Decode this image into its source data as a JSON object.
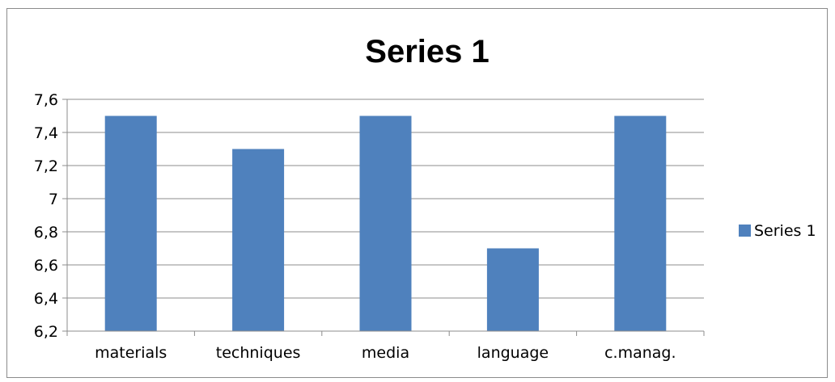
{
  "chart_data": {
    "type": "bar",
    "title": "Series 1",
    "categories": [
      "materials",
      "techniques",
      "media",
      "language",
      "c.manag."
    ],
    "series": [
      {
        "name": "Series 1",
        "values": [
          7.5,
          7.3,
          7.5,
          6.7,
          7.5
        ],
        "color": "#4f81bd"
      }
    ],
    "ylim": [
      6.2,
      7.6
    ],
    "yticks": [
      6.2,
      6.4,
      6.6,
      6.8,
      7.0,
      7.2,
      7.4,
      7.6
    ],
    "ytick_labels": [
      "6,2",
      "6,4",
      "6,6",
      "6,8",
      "7",
      "7,2",
      "7,4",
      "7,6"
    ],
    "xlabel": "",
    "ylabel": "",
    "grid": true,
    "legend": {
      "position": "right",
      "entries": [
        "Series 1"
      ]
    }
  }
}
